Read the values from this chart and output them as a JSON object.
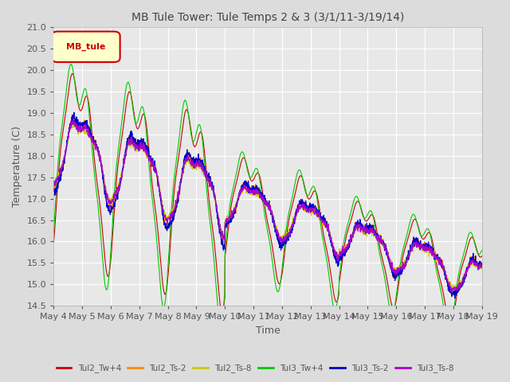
{
  "title": "MB Tule Tower: Tule Temps 2 & 3 (3/1/11-3/19/14)",
  "xlabel": "Time",
  "ylabel": "Temperature (C)",
  "ylim": [
    14.5,
    21.0
  ],
  "xlim": [
    0,
    15
  ],
  "background_color": "#dcdcdc",
  "plot_bg_color": "#e8e8e8",
  "legend_label": "MB_tule",
  "series": [
    {
      "label": "Tul2_Tw+4",
      "color": "#cc0000"
    },
    {
      "label": "Tul2_Ts-2",
      "color": "#ff8800"
    },
    {
      "label": "Tul2_Ts-8",
      "color": "#cccc00"
    },
    {
      "label": "Tul3_Tw+4",
      "color": "#00cc00"
    },
    {
      "label": "Tul3_Ts-2",
      "color": "#0000cc"
    },
    {
      "label": "Tul3_Ts-8",
      "color": "#aa00cc"
    }
  ],
  "x_ticks": [
    0,
    1,
    2,
    3,
    4,
    5,
    6,
    7,
    8,
    9,
    10,
    11,
    12,
    13,
    14,
    15
  ],
  "x_tick_labels": [
    "May 4",
    "May 5",
    "May 6",
    "May 7",
    "May 8",
    "May 9",
    "May 10",
    "May 11",
    "May 12",
    "May 13",
    "May 14",
    "May 15",
    "May 16",
    "May 17",
    "May 18",
    "May 19"
  ],
  "yticks": [
    14.5,
    15.0,
    15.5,
    16.0,
    16.5,
    17.0,
    17.5,
    18.0,
    18.5,
    19.0,
    19.5,
    20.0,
    20.5,
    21.0
  ]
}
